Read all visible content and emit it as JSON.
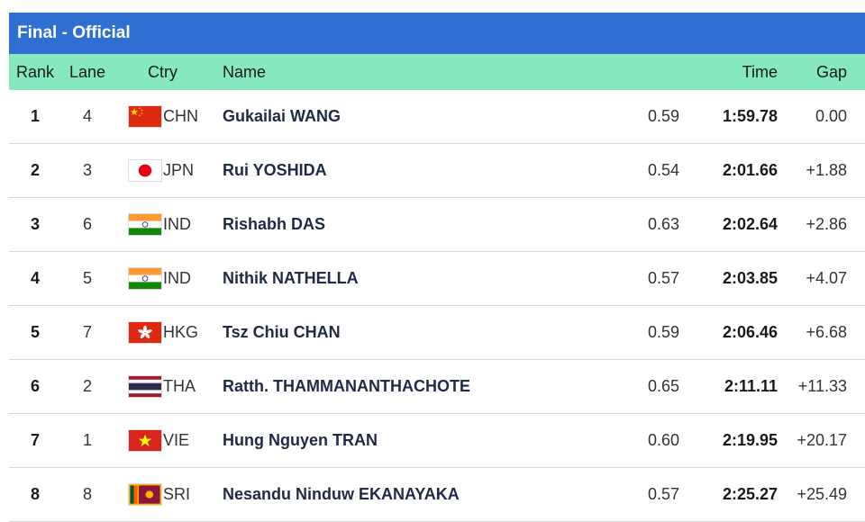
{
  "header": {
    "title": "Final - Official"
  },
  "columns": {
    "rank": "Rank",
    "lane": "Lane",
    "ctry": "Ctry",
    "name": "Name",
    "time": "Time",
    "gap": "Gap"
  },
  "rows": [
    {
      "rank": "1",
      "lane": "4",
      "ctry": "CHN",
      "flag_icon": "china-flag-icon",
      "name": "Gukailai WANG",
      "rt": "0.59",
      "time": "1:59.78",
      "gap": "0.00"
    },
    {
      "rank": "2",
      "lane": "3",
      "ctry": "JPN",
      "flag_icon": "japan-flag-icon",
      "name": "Rui YOSHIDA",
      "rt": "0.54",
      "time": "2:01.66",
      "gap": "+1.88"
    },
    {
      "rank": "3",
      "lane": "6",
      "ctry": "IND",
      "flag_icon": "india-flag-icon",
      "name": "Rishabh DAS",
      "rt": "0.63",
      "time": "2:02.64",
      "gap": "+2.86"
    },
    {
      "rank": "4",
      "lane": "5",
      "ctry": "IND",
      "flag_icon": "india-flag-icon",
      "name": "Nithik NATHELLA",
      "rt": "0.57",
      "time": "2:03.85",
      "gap": "+4.07"
    },
    {
      "rank": "5",
      "lane": "7",
      "ctry": "HKG",
      "flag_icon": "hong-kong-flag-icon",
      "name": "Tsz Chiu CHAN",
      "rt": "0.59",
      "time": "2:06.46",
      "gap": "+6.68"
    },
    {
      "rank": "6",
      "lane": "2",
      "ctry": "THA",
      "flag_icon": "thailand-flag-icon",
      "name": "Ratth. THAMMANANTHACHOTE",
      "rt": "0.65",
      "time": "2:11.11",
      "gap": "+11.33"
    },
    {
      "rank": "7",
      "lane": "1",
      "ctry": "VIE",
      "flag_icon": "vietnam-flag-icon",
      "name": "Hung Nguyen TRAN",
      "rt": "0.60",
      "time": "2:19.95",
      "gap": "+20.17"
    },
    {
      "rank": "8",
      "lane": "8",
      "ctry": "SRI",
      "flag_icon": "sri-lanka-flag-icon",
      "name": "Nesandu Ninduw EKANAYAKA",
      "rt": "0.57",
      "time": "2:25.27",
      "gap": "+25.49"
    }
  ],
  "colors": {
    "header_blue": "#2f6fd1",
    "column_header_green": "#86e8bf"
  }
}
